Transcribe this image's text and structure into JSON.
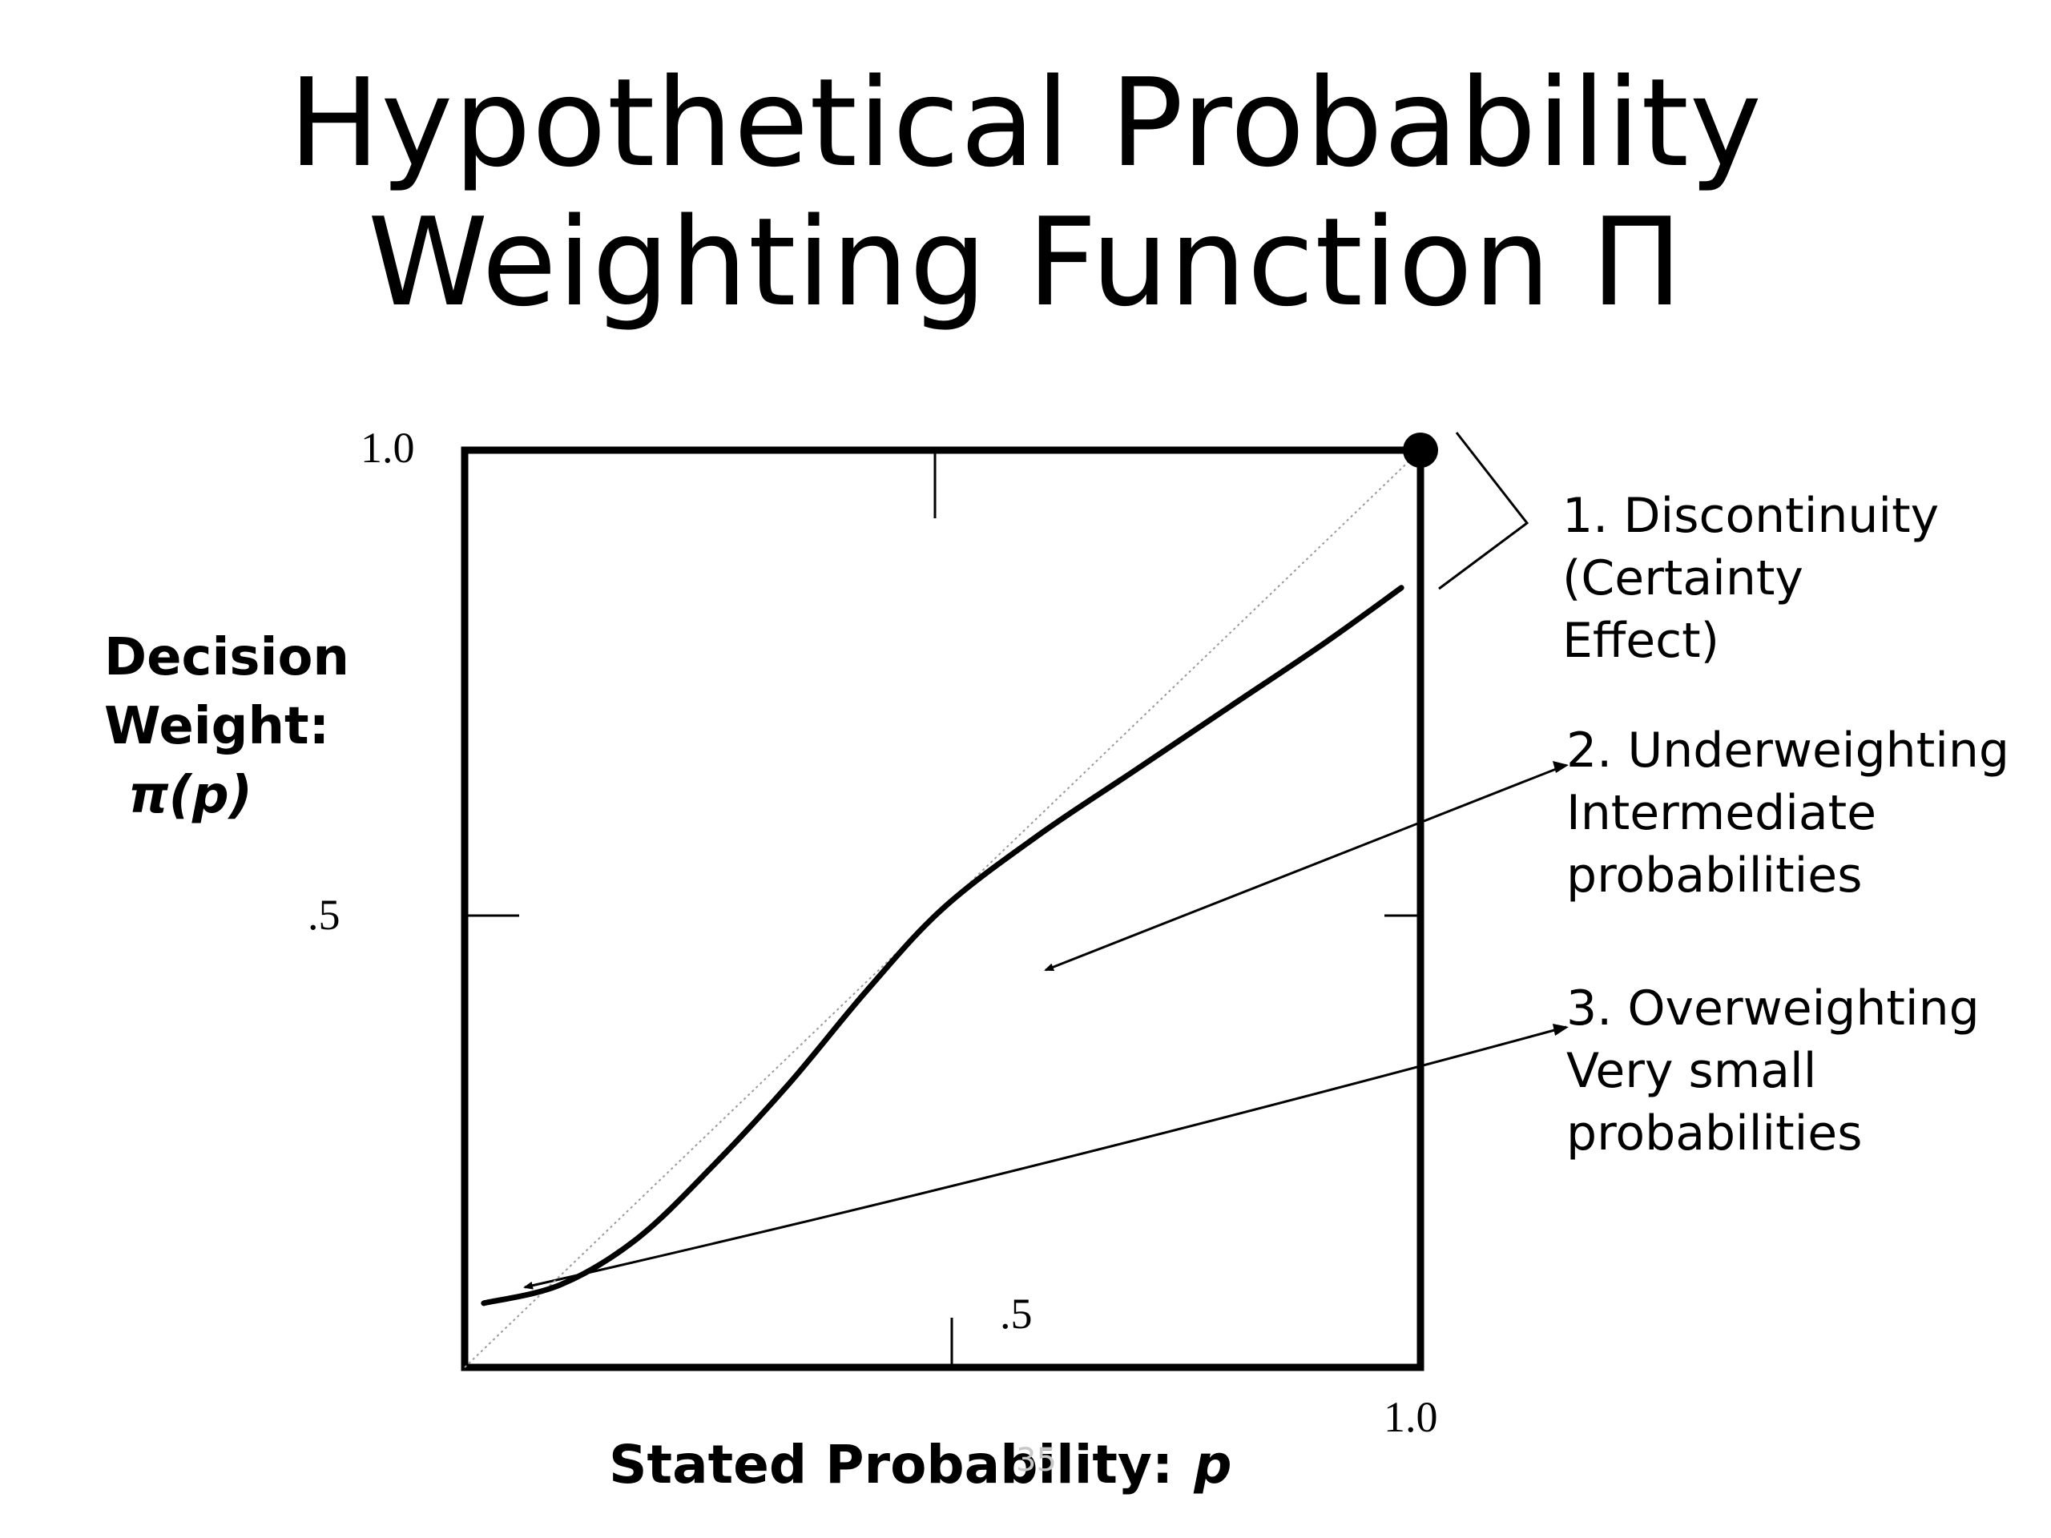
{
  "title": {
    "line1": "Hypothetical Probability",
    "line2": "Weighting Function Π"
  },
  "y_axis": {
    "label_line1": "Decision",
    "label_line2": "Weight:",
    "label_math": "π(p)",
    "tick_top": "1.0",
    "tick_mid": ".5"
  },
  "x_axis": {
    "label": "Stated Probability:",
    "label_math": "p",
    "tick_mid": ".5",
    "tick_end": "1.0"
  },
  "annotations": [
    {
      "lines": [
        "1. Discontinuity",
        "(Certainty",
        "Effect)"
      ]
    },
    {
      "lines": [
        "2. Underweighting",
        "Intermediate",
        "probabilities"
      ]
    },
    {
      "lines": [
        "3. Overweighting",
        "Very small",
        "probabilities"
      ]
    }
  ],
  "watermark": "35",
  "chart_data": {
    "type": "line",
    "xlim": [
      0,
      1
    ],
    "ylim": [
      0,
      1
    ],
    "series": [
      {
        "x": [
          0.02,
          0.1,
          0.18,
          0.26,
          0.34,
          0.42,
          0.5,
          0.6,
          0.7,
          0.8,
          0.9,
          0.98
        ],
        "y": [
          0.07,
          0.09,
          0.14,
          0.22,
          0.31,
          0.41,
          0.5,
          0.58,
          0.65,
          0.72,
          0.79,
          0.85
        ]
      }
    ],
    "reference_line": {
      "x": [
        0,
        1
      ],
      "y": [
        0,
        1
      ],
      "style": "dotted"
    },
    "endpoint": {
      "x": 1.0,
      "y": 1.0
    }
  }
}
